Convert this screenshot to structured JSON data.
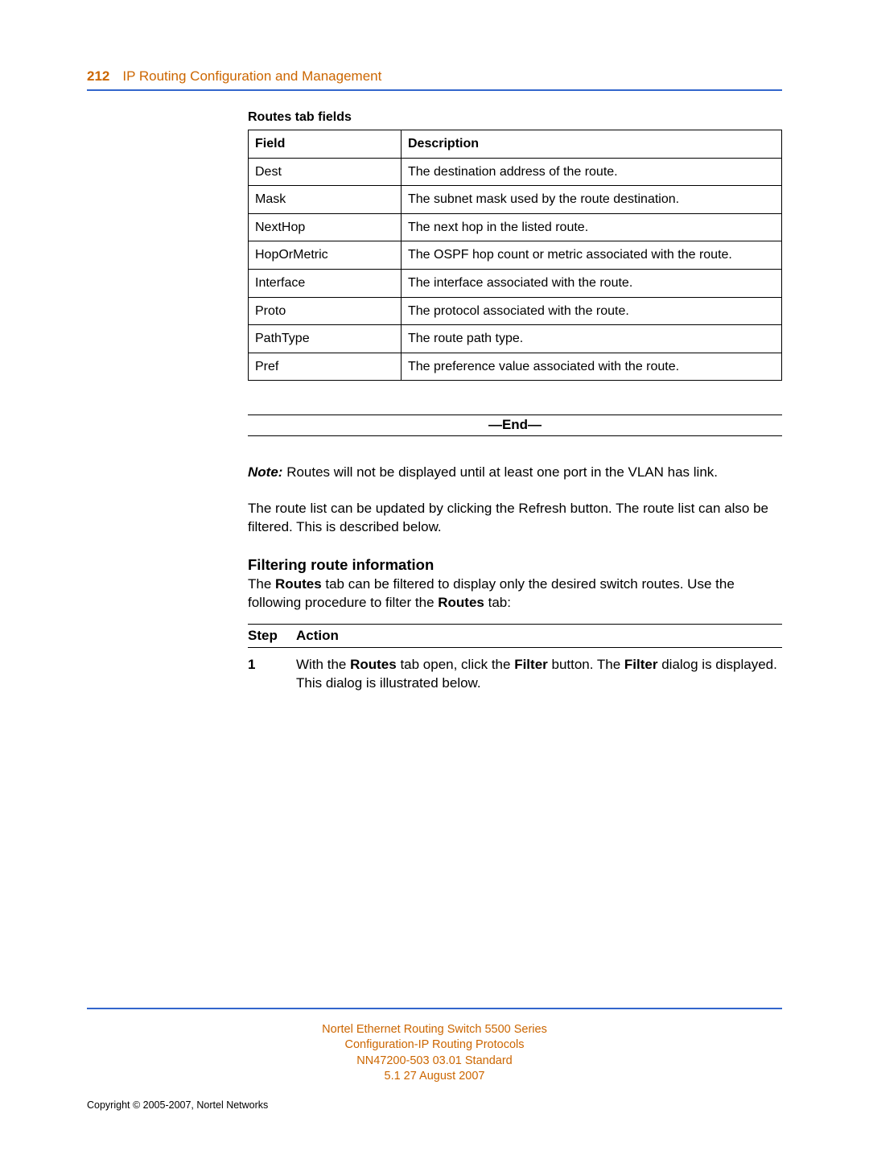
{
  "header": {
    "page_number": "212",
    "title": "IP Routing Configuration and Management"
  },
  "table": {
    "caption": "Routes tab fields",
    "columns": [
      "Field",
      "Description"
    ],
    "rows": [
      [
        "Dest",
        "The destination address of the route."
      ],
      [
        "Mask",
        "The subnet mask used by the route destination."
      ],
      [
        "NextHop",
        "The next hop in the listed route."
      ],
      [
        "HopOrMetric",
        "The OSPF hop count or metric associated with the route."
      ],
      [
        "Interface",
        "The interface associated with the route."
      ],
      [
        "Proto",
        "The protocol associated with the route."
      ],
      [
        "PathType",
        "The route path type."
      ],
      [
        "Pref",
        "The preference value associated with the route."
      ]
    ]
  },
  "end_label": "—End—",
  "note": {
    "prefix": "Note:",
    "text": "Routes will not be displayed until at least one port in the VLAN has link."
  },
  "refresh_para": "The route list can be updated by clicking the Refresh button. The route list can also be filtered. This is described below.",
  "section_heading": "Filtering route information",
  "filter_intro": {
    "pre": "The ",
    "b1": "Routes",
    "mid": " tab can be filtered to display only the desired switch routes. Use the following procedure to filter the ",
    "b2": "Routes",
    "post": " tab:"
  },
  "steps": {
    "header_step": "Step",
    "header_action": "Action",
    "items": [
      {
        "num": "1",
        "parts": {
          "p1": "With the ",
          "b1": "Routes",
          "p2": " tab open, click the ",
          "b2": "Filter",
          "p3": " button. The ",
          "b3": "Filter",
          "p4": " dialog is displayed. This dialog is illustrated below."
        }
      }
    ]
  },
  "footer": {
    "line1": "Nortel Ethernet Routing Switch 5500 Series",
    "line2": "Configuration-IP Routing Protocols",
    "line3": "NN47200-503   03.01   Standard",
    "line4": "5.1   27 August 2007"
  },
  "copyright": "Copyright © 2005-2007, Nortel Networks",
  "colors": {
    "accent_orange": "#cc6600",
    "rule_blue": "#3366cc"
  }
}
